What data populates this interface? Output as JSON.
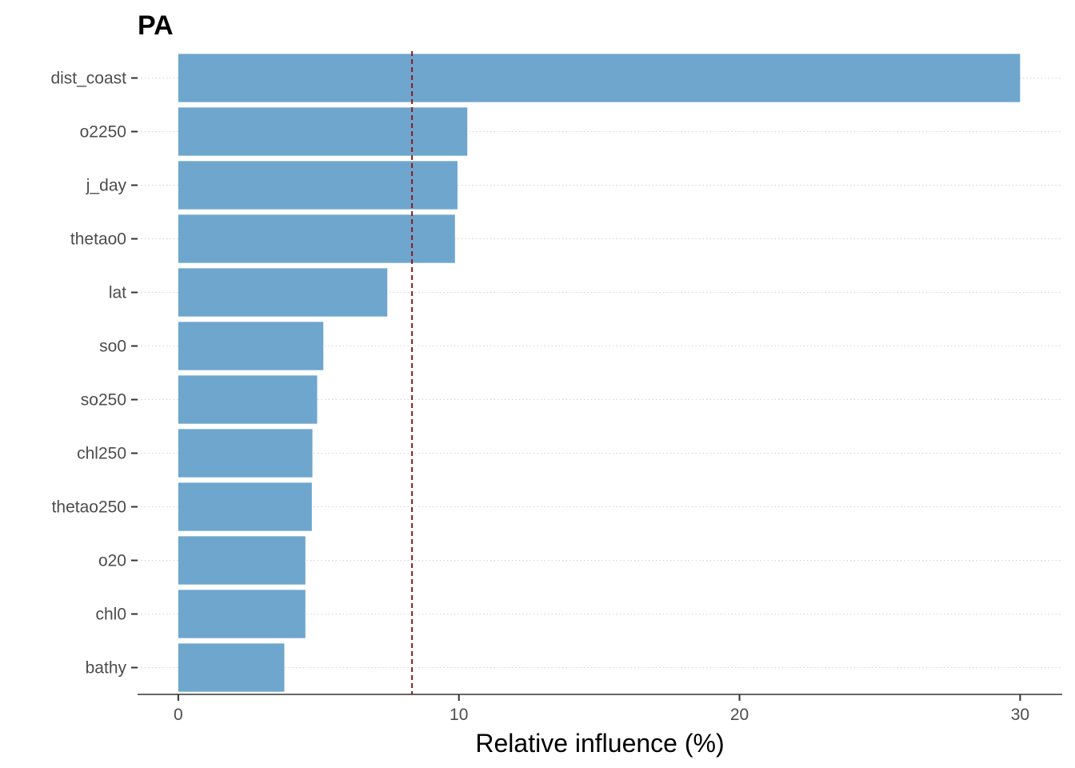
{
  "chart_data": {
    "type": "bar",
    "orientation": "horizontal",
    "title": "PA",
    "xlabel": "Relative influence (%)",
    "ylabel": "",
    "categories": [
      "dist_coast",
      "o2250",
      "j_day",
      "thetao0",
      "lat",
      "so0",
      "so250",
      "chl250",
      "thetao250",
      "o20",
      "chl0",
      "bathy"
    ],
    "values": [
      30.0,
      10.3,
      9.95,
      9.86,
      7.45,
      5.17,
      4.95,
      4.78,
      4.76,
      4.53,
      4.53,
      3.78
    ],
    "xlim": [
      -1.45,
      31.5
    ],
    "xticks": [
      0,
      10,
      20,
      30
    ],
    "reference_line": {
      "value": 8.33,
      "style": "dashed",
      "color": "#8b1a1a"
    },
    "bar_color": "#6ea6cd",
    "grid": "horizontal dotted"
  }
}
